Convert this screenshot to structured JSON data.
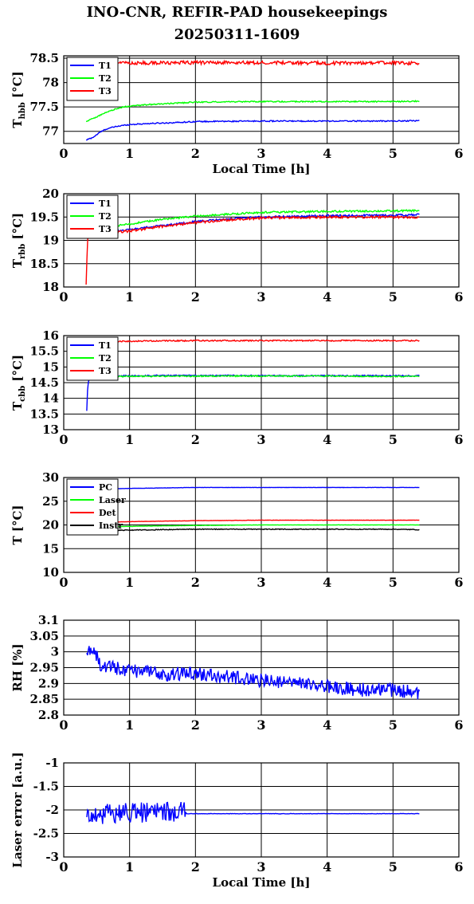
{
  "title": {
    "line1": "INO-CNR, REFIR-PAD housekeepings",
    "line2": "20250311-1609"
  },
  "colors": {
    "blue": "#0000ff",
    "green": "#00ff00",
    "red": "#ff0000",
    "black": "#000000"
  },
  "chart_data": [
    {
      "type": "line",
      "ylabel_main": "T",
      "ylabel_sub": "hbb",
      "ylabel_suffix": " [°C]",
      "xlabel": "Local Time [h]",
      "xlim": [
        0,
        6
      ],
      "ylim": [
        76.75,
        78.55
      ],
      "xticks": [
        "0",
        "1",
        "2",
        "3",
        "4",
        "5",
        "6"
      ],
      "yticks": [
        {
          "v": 77,
          "t": "77"
        },
        {
          "v": 77.5,
          "t": "77.5"
        },
        {
          "v": 78,
          "t": "78"
        },
        {
          "v": 78.5,
          "t": "78.5"
        }
      ],
      "grid": true,
      "legend": "top-left",
      "series": [
        {
          "name": "T1",
          "color": "#0000ff",
          "noise": 0.012,
          "points": [
            [
              0.34,
              76.82
            ],
            [
              0.45,
              76.88
            ],
            [
              0.55,
              76.98
            ],
            [
              0.65,
              77.05
            ],
            [
              0.8,
              77.1
            ],
            [
              1,
              77.14
            ],
            [
              1.3,
              77.16
            ],
            [
              1.7,
              77.18
            ],
            [
              2,
              77.2
            ],
            [
              3,
              77.21
            ],
            [
              4,
              77.21
            ],
            [
              5,
              77.21
            ],
            [
              5.4,
              77.22
            ]
          ]
        },
        {
          "name": "T2",
          "color": "#00ff00",
          "noise": 0.012,
          "points": [
            [
              0.34,
              77.2
            ],
            [
              0.5,
              77.3
            ],
            [
              0.7,
              77.42
            ],
            [
              0.9,
              77.5
            ],
            [
              1.2,
              77.54
            ],
            [
              1.6,
              77.57
            ],
            [
              2,
              77.6
            ],
            [
              3,
              77.61
            ],
            [
              4,
              77.61
            ],
            [
              5,
              77.61
            ],
            [
              5.4,
              77.62
            ]
          ]
        },
        {
          "name": "T3",
          "color": "#ff0000",
          "noise": 0.035,
          "points": [
            [
              0.34,
              78.4
            ],
            [
              1,
              78.4
            ],
            [
              2,
              78.41
            ],
            [
              3,
              78.41
            ],
            [
              4,
              78.4
            ],
            [
              5,
              78.41
            ],
            [
              5.4,
              78.39
            ]
          ]
        }
      ]
    },
    {
      "type": "line",
      "ylabel_main": "T",
      "ylabel_sub": "rbb",
      "ylabel_suffix": " [°C]",
      "xlabel": "",
      "xlim": [
        0,
        6
      ],
      "ylim": [
        18,
        20
      ],
      "xticks": [
        "0",
        "1",
        "2",
        "3",
        "4",
        "5",
        "6"
      ],
      "yticks": [
        {
          "v": 18,
          "t": "18"
        },
        {
          "v": 18.5,
          "t": "18.5"
        },
        {
          "v": 19,
          "t": "19"
        },
        {
          "v": 19.5,
          "t": "19.5"
        },
        {
          "v": 20,
          "t": "20"
        }
      ],
      "grid": true,
      "legend": "top-left",
      "series": [
        {
          "name": "T1",
          "color": "#0000ff",
          "noise": 0.02,
          "points": [
            [
              0.36,
              19.2
            ],
            [
              0.6,
              19.18
            ],
            [
              1,
              19.23
            ],
            [
              1.5,
              19.32
            ],
            [
              2,
              19.4
            ],
            [
              2.5,
              19.46
            ],
            [
              3,
              19.5
            ],
            [
              4,
              19.53
            ],
            [
              5,
              19.54
            ],
            [
              5.4,
              19.55
            ]
          ]
        },
        {
          "name": "T2",
          "color": "#00ff00",
          "noise": 0.02,
          "points": [
            [
              0.36,
              19.3
            ],
            [
              0.6,
              19.28
            ],
            [
              1,
              19.35
            ],
            [
              1.5,
              19.45
            ],
            [
              2,
              19.52
            ],
            [
              2.5,
              19.56
            ],
            [
              3,
              19.6
            ],
            [
              4,
              19.62
            ],
            [
              5,
              19.63
            ],
            [
              5.4,
              19.64
            ]
          ]
        },
        {
          "name": "T3",
          "color": "#ff0000",
          "noise": 0.025,
          "points": [
            [
              0.34,
              18.05
            ],
            [
              0.36,
              19.0
            ],
            [
              0.39,
              19.1
            ],
            [
              0.6,
              19.14
            ],
            [
              1,
              19.2
            ],
            [
              1.5,
              19.3
            ],
            [
              2,
              19.38
            ],
            [
              2.5,
              19.44
            ],
            [
              3,
              19.48
            ],
            [
              4,
              19.5
            ],
            [
              5,
              19.5
            ],
            [
              5.4,
              19.5
            ]
          ]
        }
      ]
    },
    {
      "type": "line",
      "ylabel_main": "T",
      "ylabel_sub": "cbb",
      "ylabel_suffix": " [°C]",
      "xlabel": "",
      "xlim": [
        0,
        6
      ],
      "ylim": [
        13,
        16
      ],
      "xticks": [
        "0",
        "1",
        "2",
        "3",
        "4",
        "5",
        "6"
      ],
      "yticks": [
        {
          "v": 13,
          "t": "13"
        },
        {
          "v": 13.5,
          "t": "13.5"
        },
        {
          "v": 14,
          "t": "14"
        },
        {
          "v": 14.5,
          "t": "14.5"
        },
        {
          "v": 15,
          "t": "15"
        },
        {
          "v": 15.5,
          "t": "15.5"
        },
        {
          "v": 16,
          "t": "16"
        }
      ],
      "grid": true,
      "legend": "top-left",
      "series": [
        {
          "name": "T1",
          "color": "#0000ff",
          "noise": 0.02,
          "points": [
            [
              0.35,
              13.6
            ],
            [
              0.36,
              14.2
            ],
            [
              0.37,
              14.5
            ],
            [
              0.4,
              14.7
            ],
            [
              1,
              14.72
            ],
            [
              2,
              14.73
            ],
            [
              3,
              14.72
            ],
            [
              4,
              14.72
            ],
            [
              5,
              14.72
            ],
            [
              5.4,
              14.72
            ]
          ]
        },
        {
          "name": "T2",
          "color": "#00ff00",
          "noise": 0.02,
          "points": [
            [
              0.37,
              14.68
            ],
            [
              1,
              14.7
            ],
            [
              2,
              14.71
            ],
            [
              3,
              14.71
            ],
            [
              4,
              14.71
            ],
            [
              5,
              14.7
            ],
            [
              5.4,
              14.7
            ]
          ]
        },
        {
          "name": "T3",
          "color": "#ff0000",
          "noise": 0.02,
          "points": [
            [
              0.34,
              15.88
            ],
            [
              0.4,
              15.8
            ],
            [
              1,
              15.82
            ],
            [
              2,
              15.84
            ],
            [
              3,
              15.84
            ],
            [
              4,
              15.84
            ],
            [
              5,
              15.84
            ],
            [
              5.4,
              15.84
            ]
          ]
        }
      ]
    },
    {
      "type": "line",
      "ylabel_main": "T [°C]",
      "ylabel_sub": "",
      "ylabel_suffix": "",
      "xlabel": "",
      "xlim": [
        0,
        6
      ],
      "ylim": [
        10,
        30
      ],
      "xticks": [
        "0",
        "1",
        "2",
        "3",
        "4",
        "5",
        "6"
      ],
      "yticks": [
        {
          "v": 10,
          "t": "10"
        },
        {
          "v": 15,
          "t": "15"
        },
        {
          "v": 20,
          "t": "20"
        },
        {
          "v": 25,
          "t": "25"
        },
        {
          "v": 30,
          "t": "30"
        }
      ],
      "grid": true,
      "legend": "top-left",
      "series": [
        {
          "name": "PC",
          "color": "#0000ff",
          "noise": 0.03,
          "points": [
            [
              0.34,
              27.5
            ],
            [
              1,
              27.7
            ],
            [
              2,
              27.9
            ],
            [
              3,
              27.9
            ],
            [
              4,
              27.9
            ],
            [
              5,
              27.9
            ],
            [
              5.4,
              27.9
            ]
          ]
        },
        {
          "name": "Laser",
          "color": "#00ff00",
          "noise": 0.03,
          "points": [
            [
              0.34,
              19.5
            ],
            [
              1,
              19.7
            ],
            [
              2,
              19.9
            ],
            [
              3,
              20.0
            ],
            [
              4,
              20.0
            ],
            [
              5,
              20.0
            ],
            [
              5.4,
              20.0
            ]
          ]
        },
        {
          "name": "Det",
          "color": "#ff0000",
          "noise": 0.03,
          "points": [
            [
              0.34,
              20.4
            ],
            [
              1,
              20.7
            ],
            [
              2,
              20.9
            ],
            [
              3,
              21.0
            ],
            [
              4,
              21.0
            ],
            [
              5,
              21.0
            ],
            [
              5.4,
              21.0
            ]
          ]
        },
        {
          "name": "Instr",
          "color": "#000000",
          "noise": 0.08,
          "points": [
            [
              0.34,
              18.8
            ],
            [
              1,
              18.9
            ],
            [
              2,
              19.1
            ],
            [
              3,
              19.1
            ],
            [
              4,
              19.1
            ],
            [
              5,
              19.1
            ],
            [
              5.4,
              19.0
            ]
          ]
        }
      ]
    },
    {
      "type": "line",
      "ylabel_main": "RH [%]",
      "ylabel_sub": "",
      "ylabel_suffix": "",
      "xlabel": "",
      "xlim": [
        0,
        6
      ],
      "ylim": [
        2.8,
        3.1
      ],
      "xticks": [
        "0",
        "1",
        "2",
        "3",
        "4",
        "5",
        "6"
      ],
      "yticks": [
        {
          "v": 2.8,
          "t": "2.8"
        },
        {
          "v": 2.85,
          "t": "2.85"
        },
        {
          "v": 2.9,
          "t": "2.9"
        },
        {
          "v": 2.95,
          "t": "2.95"
        },
        {
          "v": 3,
          "t": "3"
        },
        {
          "v": 3.05,
          "t": "3.05"
        },
        {
          "v": 3.1,
          "t": "3.1"
        }
      ],
      "grid": true,
      "legend": "none",
      "series": [
        {
          "name": "",
          "color": "#0000ff",
          "noise": 0.022,
          "points": [
            [
              0.35,
              3.0
            ],
            [
              0.45,
              3.01
            ],
            [
              0.55,
              2.96
            ],
            [
              1,
              2.94
            ],
            [
              1.5,
              2.93
            ],
            [
              2,
              2.93
            ],
            [
              2.5,
              2.92
            ],
            [
              3,
              2.91
            ],
            [
              3.5,
              2.9
            ],
            [
              4,
              2.89
            ],
            [
              4.5,
              2.88
            ],
            [
              5,
              2.88
            ],
            [
              5.4,
              2.87
            ]
          ]
        }
      ]
    },
    {
      "type": "line",
      "ylabel_main": "Laser error [a.u.]",
      "ylabel_sub": "",
      "ylabel_suffix": "",
      "xlabel": "Local Time [h]",
      "xlim": [
        0,
        6
      ],
      "ylim": [
        -3,
        -1
      ],
      "xticks": [
        "0",
        "1",
        "2",
        "3",
        "4",
        "5",
        "6"
      ],
      "yticks": [
        {
          "v": -3,
          "t": "-3"
        },
        {
          "v": -2.5,
          "t": "-2.5"
        },
        {
          "v": -2,
          "t": "-2"
        },
        {
          "v": -1.5,
          "t": "-1.5"
        },
        {
          "v": -1,
          "t": "-1"
        }
      ],
      "grid": true,
      "legend": "none",
      "series": [
        {
          "name": "",
          "color": "#0000ff",
          "noise": 0.22,
          "noise_until": 1.85,
          "noise_after": 0.004,
          "points": [
            [
              0.35,
              -2.1
            ],
            [
              1.0,
              -2.05
            ],
            [
              1.85,
              -2.05
            ],
            [
              1.86,
              -2.08
            ],
            [
              3,
              -2.08
            ],
            [
              4,
              -2.08
            ],
            [
              5,
              -2.08
            ],
            [
              5.4,
              -2.08
            ]
          ]
        }
      ]
    }
  ]
}
